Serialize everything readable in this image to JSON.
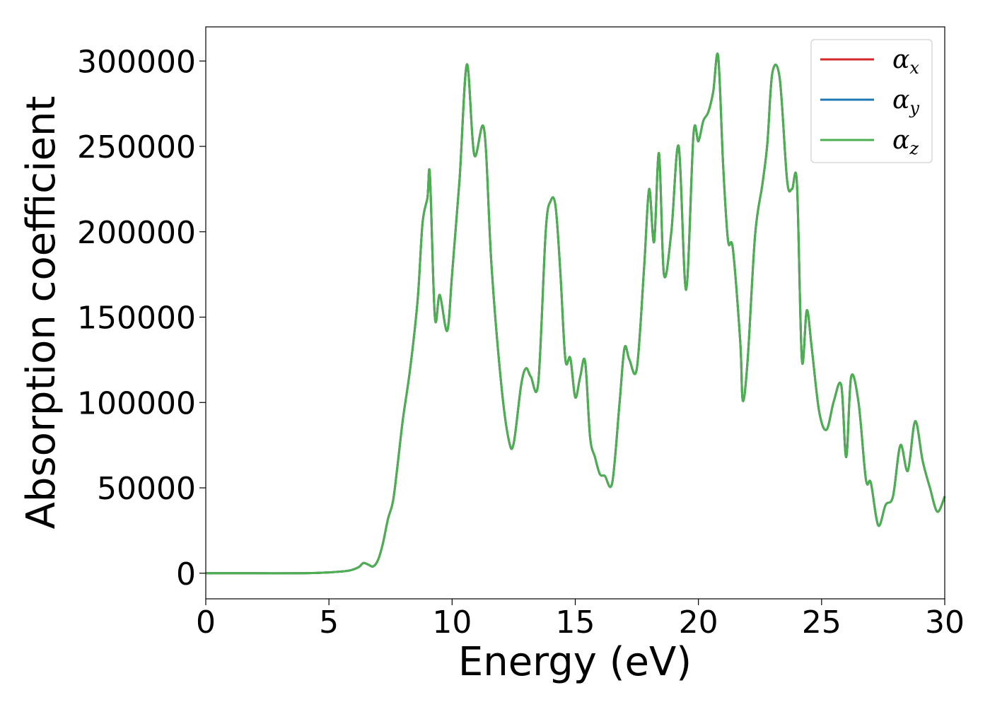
{
  "chart_data": {
    "type": "line",
    "xlabel": "Energy (eV)",
    "ylabel": "Absorption coefficient",
    "xlim": [
      0,
      30
    ],
    "ylim": [
      -15000,
      320000
    ],
    "x_ticks": [
      "0",
      "5",
      "10",
      "15",
      "20",
      "25",
      "30"
    ],
    "y_ticks": [
      "0",
      "50000",
      "100000",
      "150000",
      "200000",
      "250000",
      "300000"
    ],
    "grid": false,
    "legend_position": "top-right",
    "legend": [
      {
        "symbol": "α",
        "sub": "x",
        "color": "#d62728"
      },
      {
        "symbol": "α",
        "sub": "y",
        "color": "#1f77b4"
      },
      {
        "symbol": "α",
        "sub": "z",
        "color": "#4caf50"
      }
    ],
    "series": [
      {
        "name": "αx",
        "color": "#d62728",
        "x": [
          0,
          2,
          4,
          5,
          5.8,
          6.2,
          6.4,
          6.6,
          6.8,
          7.0,
          7.2,
          7.4,
          7.6,
          7.8,
          8.0,
          8.3,
          8.6,
          8.8,
          9.0,
          9.1,
          9.3,
          9.5,
          9.8,
          10.0,
          10.3,
          10.6,
          10.9,
          11.3,
          11.6,
          12.0,
          12.3,
          12.5,
          12.8,
          13.0,
          13.2,
          13.5,
          13.8,
          14.0,
          14.2,
          14.4,
          14.6,
          14.8,
          15.0,
          15.2,
          15.4,
          15.6,
          15.8,
          16.0,
          16.2,
          16.5,
          16.8,
          17.0,
          17.2,
          17.5,
          17.8,
          18.0,
          18.2,
          18.4,
          18.6,
          18.9,
          19.2,
          19.5,
          19.8,
          20.0,
          20.2,
          20.4,
          20.6,
          20.8,
          21.0,
          21.2,
          21.4,
          21.7,
          21.8,
          22.0,
          22.3,
          22.6,
          22.8,
          23.0,
          23.3,
          23.6,
          23.8,
          24.0,
          24.2,
          24.4,
          24.6,
          24.9,
          25.2,
          25.5,
          25.8,
          26.0,
          26.2,
          26.5,
          26.8,
          27.0,
          27.3,
          27.6,
          27.9,
          28.2,
          28.5,
          28.8,
          29.1,
          29.4,
          29.7,
          30.0
        ],
        "y": [
          0,
          0,
          0,
          500,
          1500,
          3500,
          6000,
          5000,
          4000,
          8000,
          18000,
          32000,
          42000,
          65000,
          90000,
          120000,
          160000,
          205000,
          220000,
          233000,
          150000,
          163000,
          142000,
          175000,
          230000,
          298000,
          245000,
          260000,
          180000,
          110000,
          78000,
          76000,
          110000,
          120000,
          115000,
          112000,
          200000,
          218000,
          215000,
          175000,
          125000,
          126000,
          103000,
          115000,
          124000,
          80000,
          68000,
          58000,
          57000,
          53000,
          100000,
          132000,
          125000,
          120000,
          180000,
          225000,
          194000,
          246000,
          175000,
          200000,
          250000,
          166000,
          257000,
          253000,
          265000,
          270000,
          282000,
          303000,
          240000,
          195000,
          190000,
          135000,
          101000,
          125000,
          198000,
          228000,
          252000,
          293000,
          290000,
          230000,
          225000,
          228000,
          125000,
          154000,
          132000,
          95000,
          84000,
          101000,
          110000,
          68000,
          115000,
          100000,
          55000,
          53000,
          28000,
          40000,
          45000,
          75000,
          60000,
          89000,
          66000,
          50000,
          36000,
          45000
        ]
      },
      {
        "name": "αy",
        "color": "#1f77b4",
        "x": [
          0,
          2,
          4,
          5,
          5.8,
          6.2,
          6.4,
          6.6,
          6.8,
          7.0,
          7.2,
          7.4,
          7.6,
          7.8,
          8.0,
          8.3,
          8.6,
          8.8,
          9.0,
          9.1,
          9.3,
          9.5,
          9.8,
          10.0,
          10.3,
          10.6,
          10.9,
          11.3,
          11.6,
          12.0,
          12.3,
          12.5,
          12.8,
          13.0,
          13.2,
          13.5,
          13.8,
          14.0,
          14.2,
          14.4,
          14.6,
          14.8,
          15.0,
          15.2,
          15.4,
          15.6,
          15.8,
          16.0,
          16.2,
          16.5,
          16.8,
          17.0,
          17.2,
          17.5,
          17.8,
          18.0,
          18.2,
          18.4,
          18.6,
          18.9,
          19.2,
          19.5,
          19.8,
          20.0,
          20.2,
          20.4,
          20.6,
          20.8,
          21.0,
          21.2,
          21.4,
          21.7,
          21.8,
          22.0,
          22.3,
          22.6,
          22.8,
          23.0,
          23.3,
          23.6,
          23.8,
          24.0,
          24.2,
          24.4,
          24.6,
          24.9,
          25.2,
          25.5,
          25.8,
          26.0,
          26.2,
          26.5,
          26.8,
          27.0,
          27.3,
          27.6,
          27.9,
          28.2,
          28.5,
          28.8,
          29.1,
          29.4,
          29.7,
          30.0
        ],
        "y": [
          0,
          0,
          0,
          500,
          1500,
          3500,
          6000,
          5000,
          4000,
          8000,
          18000,
          32000,
          42000,
          65000,
          90000,
          120000,
          160000,
          205000,
          220000,
          233000,
          150000,
          163000,
          142000,
          175000,
          230000,
          298000,
          245000,
          260000,
          180000,
          110000,
          78000,
          76000,
          110000,
          120000,
          115000,
          112000,
          200000,
          218000,
          215000,
          175000,
          125000,
          126000,
          103000,
          115000,
          124000,
          80000,
          68000,
          58000,
          57000,
          53000,
          100000,
          132000,
          125000,
          120000,
          180000,
          225000,
          194000,
          246000,
          175000,
          200000,
          250000,
          166000,
          257000,
          253000,
          265000,
          270000,
          282000,
          303000,
          240000,
          195000,
          190000,
          135000,
          101000,
          125000,
          198000,
          228000,
          252000,
          293000,
          290000,
          230000,
          225000,
          228000,
          125000,
          154000,
          132000,
          95000,
          84000,
          101000,
          110000,
          68000,
          115000,
          100000,
          55000,
          53000,
          28000,
          40000,
          45000,
          75000,
          60000,
          89000,
          66000,
          50000,
          36000,
          45000
        ]
      },
      {
        "name": "αz",
        "color": "#4caf50",
        "x": [
          0,
          2,
          4,
          5,
          5.8,
          6.2,
          6.4,
          6.6,
          6.8,
          7.0,
          7.2,
          7.4,
          7.6,
          7.8,
          8.0,
          8.3,
          8.6,
          8.8,
          9.0,
          9.1,
          9.3,
          9.5,
          9.8,
          10.0,
          10.3,
          10.6,
          10.9,
          11.3,
          11.6,
          12.0,
          12.3,
          12.5,
          12.8,
          13.0,
          13.2,
          13.5,
          13.8,
          14.0,
          14.2,
          14.4,
          14.6,
          14.8,
          15.0,
          15.2,
          15.4,
          15.6,
          15.8,
          16.0,
          16.2,
          16.5,
          16.8,
          17.0,
          17.2,
          17.5,
          17.8,
          18.0,
          18.2,
          18.4,
          18.6,
          18.9,
          19.2,
          19.5,
          19.8,
          20.0,
          20.2,
          20.4,
          20.6,
          20.8,
          21.0,
          21.2,
          21.4,
          21.7,
          21.8,
          22.0,
          22.3,
          22.6,
          22.8,
          23.0,
          23.3,
          23.6,
          23.8,
          24.0,
          24.2,
          24.4,
          24.6,
          24.9,
          25.2,
          25.5,
          25.8,
          26.0,
          26.2,
          26.5,
          26.8,
          27.0,
          27.3,
          27.6,
          27.9,
          28.2,
          28.5,
          28.8,
          29.1,
          29.4,
          29.7,
          30.0
        ],
        "y": [
          0,
          0,
          0,
          500,
          1500,
          3500,
          6000,
          5000,
          4000,
          8000,
          18000,
          32000,
          42000,
          65000,
          90000,
          120000,
          160000,
          205000,
          220000,
          233000,
          150000,
          163000,
          142000,
          175000,
          230000,
          298000,
          245000,
          260000,
          180000,
          110000,
          78000,
          76000,
          110000,
          120000,
          115000,
          112000,
          200000,
          218000,
          215000,
          175000,
          125000,
          126000,
          103000,
          115000,
          124000,
          80000,
          68000,
          58000,
          57000,
          53000,
          100000,
          132000,
          125000,
          120000,
          180000,
          225000,
          194000,
          246000,
          175000,
          200000,
          250000,
          166000,
          257000,
          253000,
          265000,
          270000,
          282000,
          303000,
          240000,
          195000,
          190000,
          135000,
          101000,
          125000,
          198000,
          228000,
          252000,
          293000,
          290000,
          230000,
          225000,
          228000,
          125000,
          154000,
          132000,
          95000,
          84000,
          101000,
          110000,
          68000,
          115000,
          100000,
          55000,
          53000,
          28000,
          40000,
          45000,
          75000,
          60000,
          89000,
          66000,
          50000,
          36000,
          45000
        ]
      }
    ]
  }
}
